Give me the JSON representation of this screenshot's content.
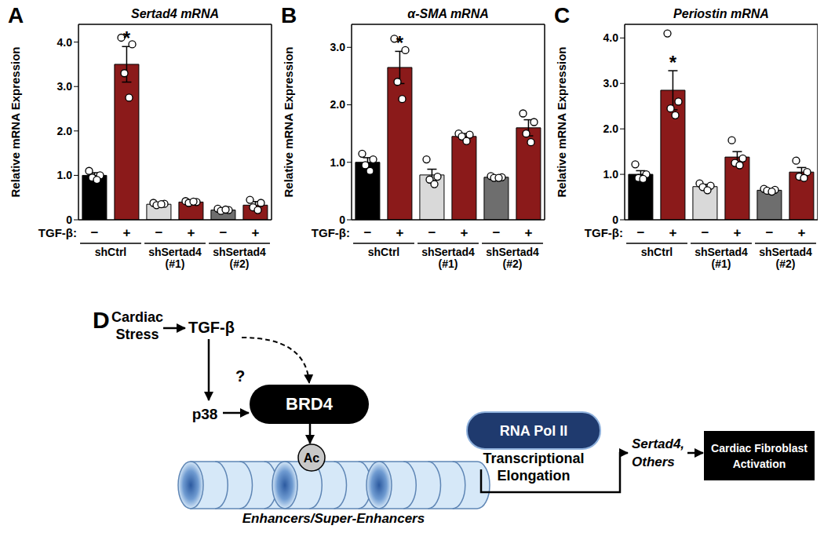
{
  "chart_data": [
    {
      "panel": "A",
      "type": "bar",
      "title": "Sertad4 mRNA",
      "ylabel": "Relative mRNA Expression",
      "xlabel": "TGF-β:",
      "categories": [
        "−",
        "+",
        "−",
        "+",
        "−",
        "+"
      ],
      "groups": [
        [
          "shCtrl"
        ],
        [
          "shSertad4",
          "(#1)"
        ],
        [
          "shSertad4",
          "(#2)"
        ]
      ],
      "values": [
        1.0,
        3.5,
        0.35,
        0.4,
        0.22,
        0.33
      ],
      "errors": [
        0.06,
        0.4,
        0.03,
        0.02,
        0.03,
        0.08
      ],
      "points": [
        [
          1.1,
          1.0,
          0.95,
          0.9
        ],
        [
          4.1,
          3.95,
          3.3,
          2.75
        ],
        [
          0.38,
          0.36,
          0.33,
          0.35
        ],
        [
          0.42,
          0.4,
          0.38,
          0.41
        ],
        [
          0.25,
          0.22,
          0.2,
          0.23
        ],
        [
          0.45,
          0.38,
          0.28,
          0.22
        ]
      ],
      "colors": [
        "#000000",
        "#8b1a1a",
        "#d9d9d9",
        "#8b1a1a",
        "#6e6e6e",
        "#8b1a1a"
      ],
      "ylim": [
        0,
        4.4
      ],
      "yticks": [
        0,
        {
          "value": 1,
          "label": "1.0"
        },
        {
          "value": 2,
          "label": "2.0"
        },
        {
          "value": 3,
          "label": "3.0"
        },
        {
          "value": 4,
          "label": "4.0"
        }
      ],
      "annotations": [
        {
          "index": 1,
          "text": "*"
        }
      ]
    },
    {
      "panel": "B",
      "type": "bar",
      "title": "α-SMA mRNA",
      "ylabel": "Relative mRNA Expression",
      "xlabel": "TGF-β:",
      "categories": [
        "−",
        "+",
        "−",
        "+",
        "−",
        "+"
      ],
      "groups": [
        [
          "shCtrl"
        ],
        [
          "shSertad4",
          "(#1)"
        ],
        [
          "shSertad4",
          "(#2)"
        ]
      ],
      "values": [
        1.0,
        2.65,
        0.78,
        1.45,
        0.74,
        1.6
      ],
      "errors": [
        0.08,
        0.28,
        0.1,
        0.05,
        0.02,
        0.14
      ],
      "points": [
        [
          1.15,
          1.05,
          0.95,
          0.85
        ],
        [
          3.15,
          2.95,
          2.4,
          2.1
        ],
        [
          1.05,
          0.75,
          0.7,
          0.62
        ],
        [
          1.5,
          1.48,
          1.45,
          1.37
        ],
        [
          0.76,
          0.74,
          0.73,
          0.73
        ],
        [
          1.85,
          1.7,
          1.5,
          1.35
        ]
      ],
      "colors": [
        "#000000",
        "#8b1a1a",
        "#d9d9d9",
        "#8b1a1a",
        "#6e6e6e",
        "#8b1a1a"
      ],
      "ylim": [
        0,
        3.4
      ],
      "yticks": [
        0,
        {
          "value": 1,
          "label": "1.0"
        },
        {
          "value": 2,
          "label": "2.0"
        },
        {
          "value": 3,
          "label": "3.0"
        }
      ],
      "annotations": [
        {
          "index": 1,
          "text": "*"
        }
      ]
    },
    {
      "panel": "C",
      "type": "bar",
      "title": "Periostin mRNA",
      "ylabel": "Relative mRNA Expression",
      "xlabel": "TGF-β:",
      "categories": [
        "−",
        "+",
        "−",
        "+",
        "−",
        "+"
      ],
      "groups": [
        [
          "shCtrl"
        ],
        [
          "shSertad4",
          "(#1)"
        ],
        [
          "shSertad4",
          "(#2)"
        ]
      ],
      "values": [
        1.0,
        2.85,
        0.73,
        1.38,
        0.65,
        1.05
      ],
      "errors": [
        0.08,
        0.43,
        0.05,
        0.12,
        0.03,
        0.1
      ],
      "points": [
        [
          1.22,
          1.0,
          0.92,
          0.9
        ],
        [
          4.1,
          2.6,
          2.45,
          2.3
        ],
        [
          0.8,
          0.75,
          0.72,
          0.65
        ],
        [
          1.75,
          1.35,
          1.25,
          1.2
        ],
        [
          0.68,
          0.66,
          0.64,
          0.62
        ],
        [
          1.3,
          1.05,
          0.95,
          0.92
        ]
      ],
      "colors": [
        "#000000",
        "#8b1a1a",
        "#d9d9d9",
        "#8b1a1a",
        "#6e6e6e",
        "#8b1a1a"
      ],
      "ylim": [
        0,
        4.3
      ],
      "yticks": [
        0,
        {
          "value": 1,
          "label": "1.0"
        },
        {
          "value": 2,
          "label": "2.0"
        },
        {
          "value": 3,
          "label": "3.0"
        },
        {
          "value": 4,
          "label": "4.0"
        }
      ],
      "annotations": [
        {
          "index": 1,
          "text": "*"
        }
      ]
    }
  ],
  "diagram": {
    "panel": "D",
    "cardiac_stress": [
      "Cardiac",
      "Stress"
    ],
    "tgf_beta": "TGF-β",
    "question": "?",
    "p38": "p38",
    "brd4": "BRD4",
    "acetyl": "Ac",
    "rna_pol": "RNA Pol II",
    "elongation": [
      "Transcriptional",
      "Elongation"
    ],
    "targets": [
      "Sertad4,",
      "Others"
    ],
    "outcome": [
      "Cardiac Fibroblast",
      "Activation"
    ],
    "chromatin": "Enhancers/Super-Enhancers"
  }
}
